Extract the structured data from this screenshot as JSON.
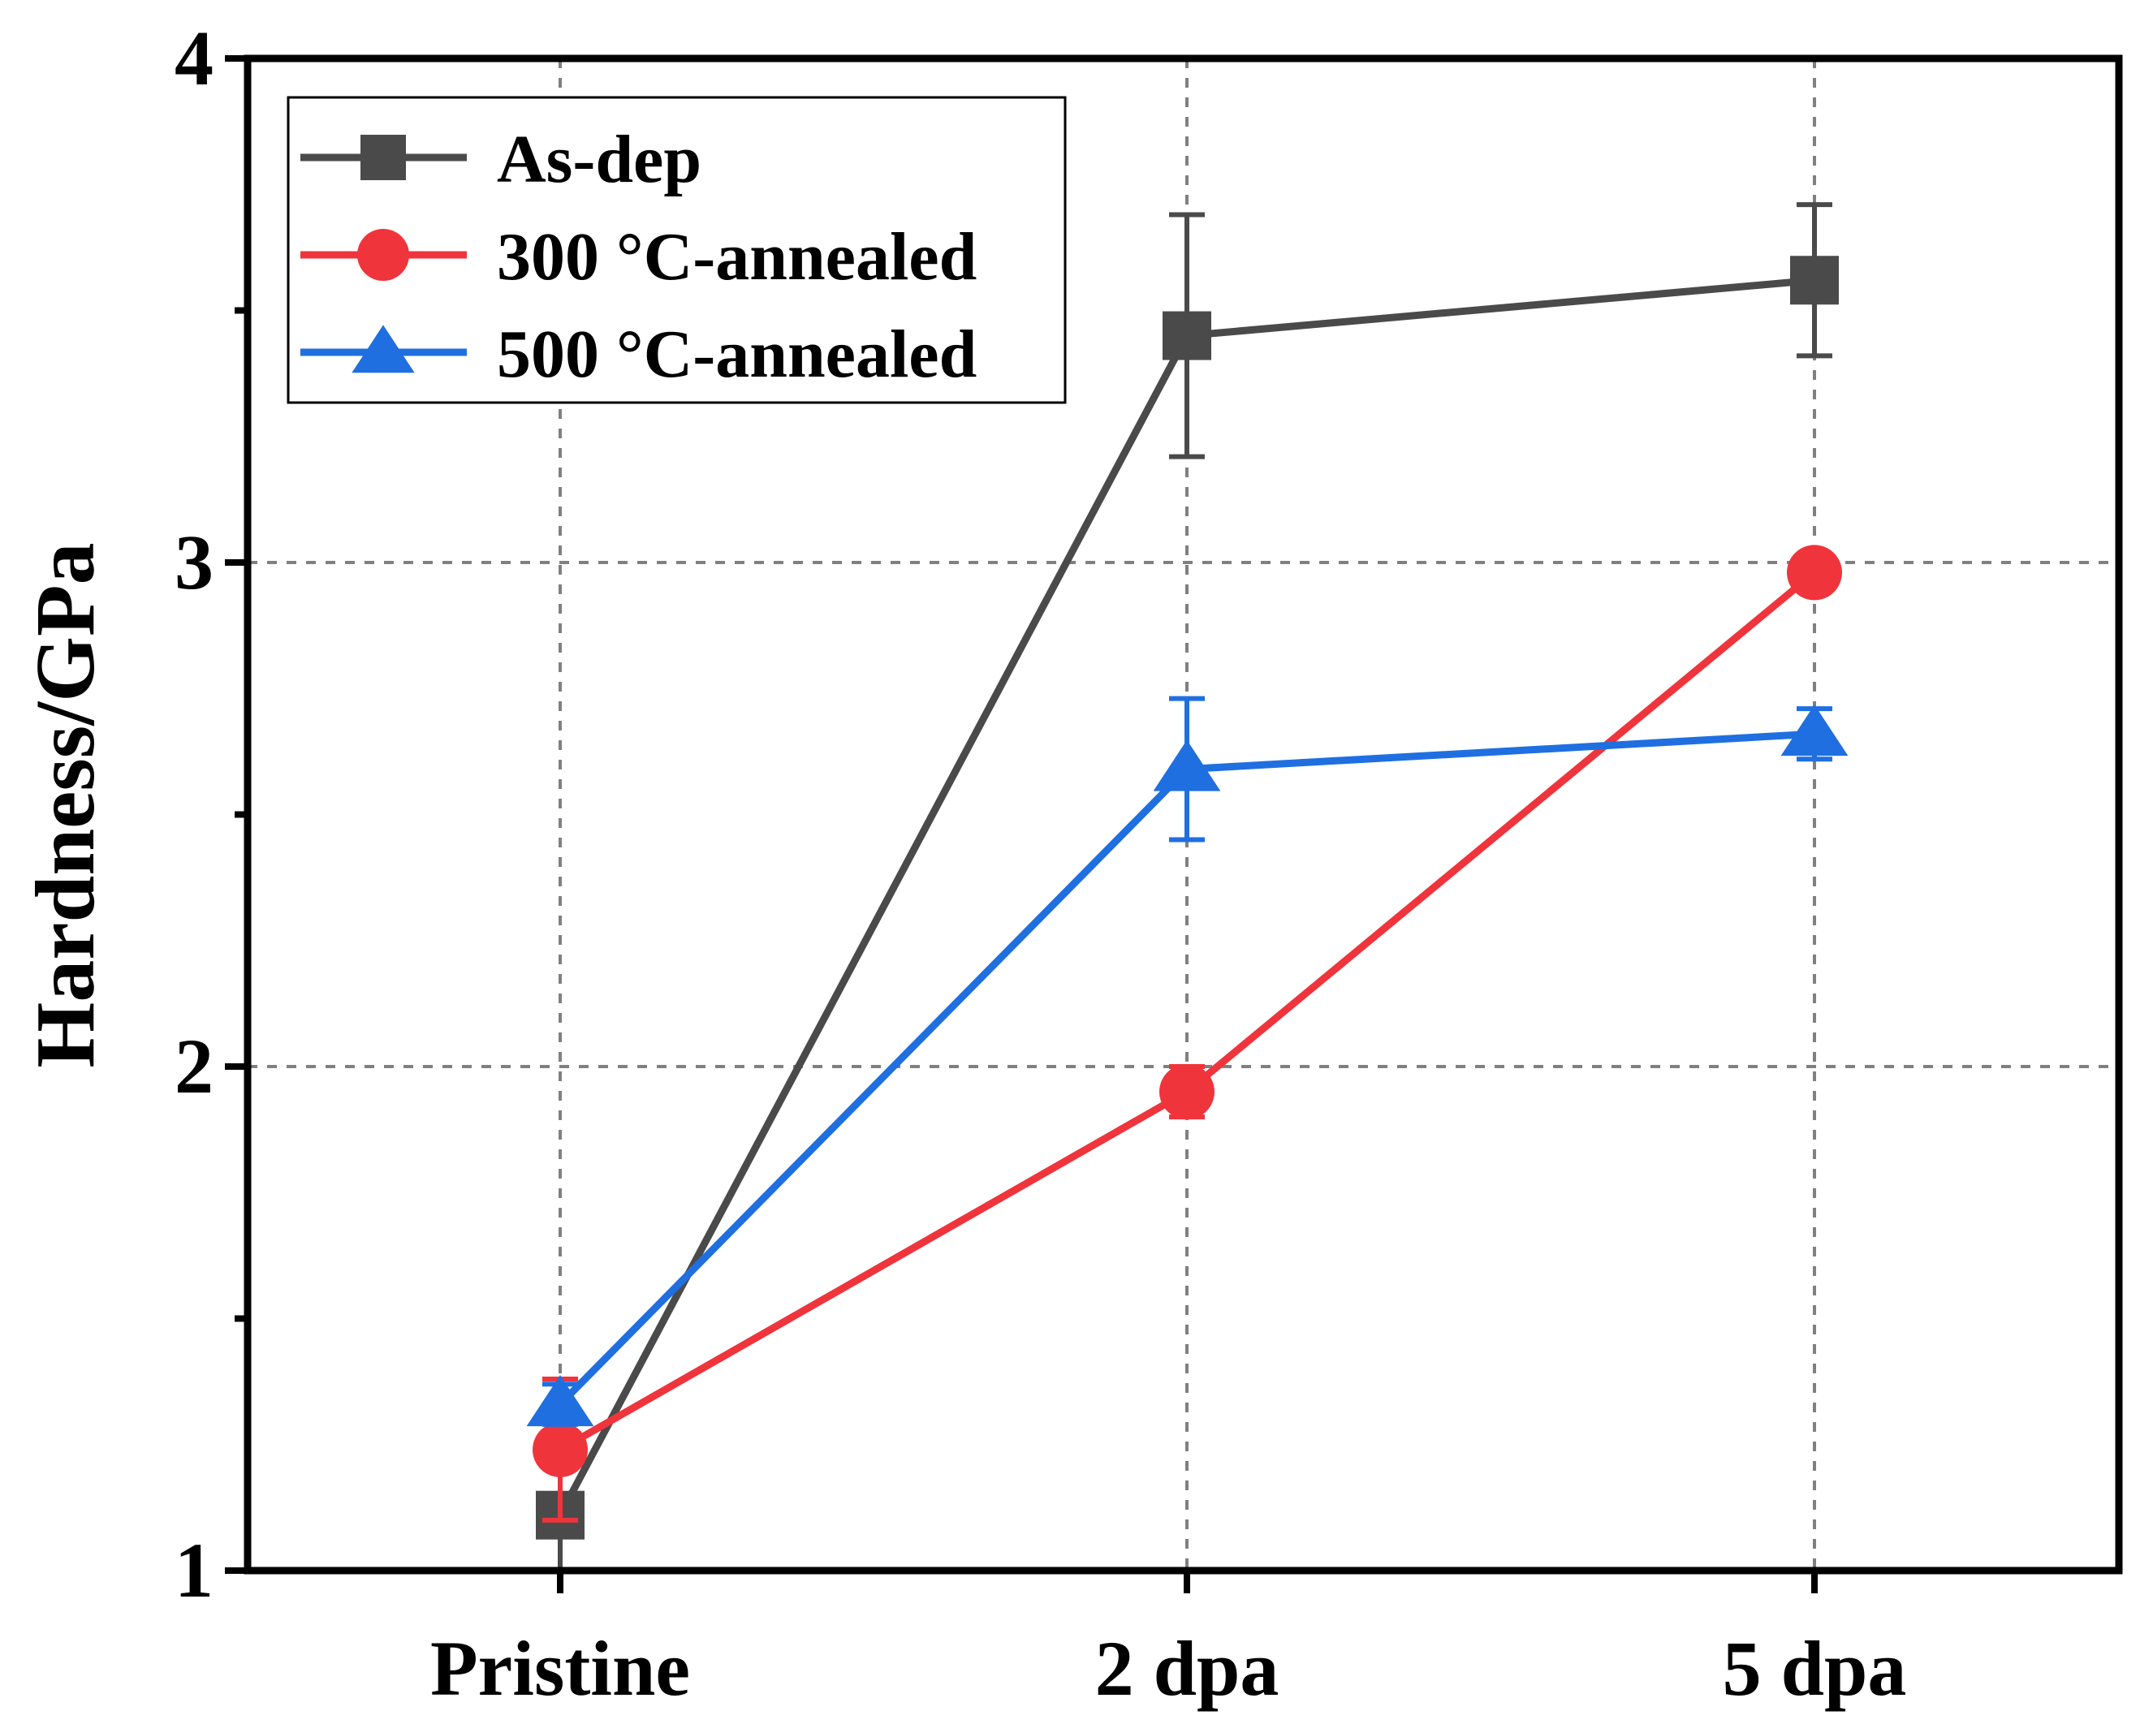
{
  "chart_data": {
    "type": "line",
    "title": "",
    "xlabel": "",
    "ylabel": "Hardness/GPa",
    "categories": [
      "Pristine",
      "2 dpa",
      "5 dpa"
    ],
    "ylim": [
      1,
      4
    ],
    "yticks": [
      1,
      2,
      3,
      4
    ],
    "yticks_minor": [
      1.5,
      2.5,
      3.5
    ],
    "grid": true,
    "legend_position": "top-left",
    "series": [
      {
        "name": "As-dep",
        "marker": "square",
        "color": "#4a4a4a",
        "values": [
          1.11,
          3.45,
          3.56
        ],
        "errors": [
          0.11,
          0.24,
          0.15
        ]
      },
      {
        "name": "300 °C-annealed",
        "marker": "circle",
        "color": "#f0343c",
        "values": [
          1.24,
          1.95,
          2.98
        ],
        "errors": [
          0.14,
          0.05,
          0.03
        ]
      },
      {
        "name": "500 °C-annealed",
        "marker": "triangle",
        "color": "#1f6fe0",
        "values": [
          1.33,
          2.59,
          2.66
        ],
        "errors": [
          0.04,
          0.14,
          0.05
        ]
      }
    ]
  }
}
